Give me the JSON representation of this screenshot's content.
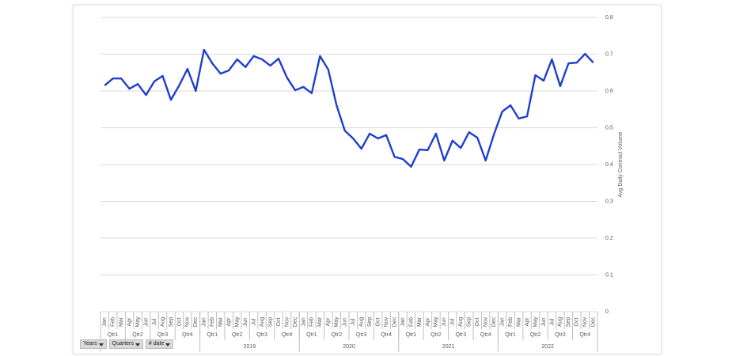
{
  "chart_data": {
    "type": "line",
    "y_label": "Avg Daily Contract Volume",
    "categories": [
      "Jan",
      "Feb",
      "Mar",
      "Apr",
      "May",
      "Jun",
      "Jul",
      "Aug",
      "Sep",
      "Oct",
      "Nov",
      "Dec",
      "Jan",
      "Feb",
      "Mar",
      "Apr",
      "May",
      "Jun",
      "Jul",
      "Aug",
      "Sep",
      "Oct",
      "Nov",
      "Dec",
      "Jan",
      "Feb",
      "Mar",
      "Apr",
      "May",
      "Jun",
      "Jul",
      "Aug",
      "Sep",
      "Oct",
      "Nov",
      "Dec",
      "Jan",
      "Feb",
      "Mar",
      "Apr",
      "May",
      "Jun",
      "Jul",
      "Aug",
      "Sep",
      "Oct",
      "Nov",
      "Dec",
      "Jan",
      "Feb",
      "Mar",
      "Apr",
      "May",
      "Jun",
      "Jul",
      "Aug",
      "Sep",
      "Oct",
      "Nov",
      "Dec"
    ],
    "quarter_labels": [
      "Qtr1",
      "Qtr2",
      "Qtr3",
      "Qtr4",
      "Qtr1",
      "Qtr2",
      "Qtr3",
      "Qtr4",
      "Qtr1",
      "Qtr2",
      "Qtr3",
      "Qtr4",
      "Qtr1",
      "Qtr2",
      "Qtr3",
      "Qtr4",
      "Qtr1",
      "Qtr2",
      "Qtr3",
      "Qtr4"
    ],
    "year_labels": [
      null,
      "2019",
      "2020",
      "2021",
      "2022"
    ],
    "values": [
      0.615,
      0.634,
      0.634,
      0.606,
      0.619,
      0.589,
      0.626,
      0.641,
      0.576,
      0.615,
      0.66,
      0.6,
      0.712,
      0.675,
      0.647,
      0.656,
      0.686,
      0.665,
      0.695,
      0.686,
      0.669,
      0.688,
      0.637,
      0.602,
      0.611,
      0.594,
      0.695,
      0.658,
      0.561,
      0.492,
      0.471,
      0.443,
      0.484,
      0.471,
      0.48,
      0.421,
      0.415,
      0.394,
      0.441,
      0.439,
      0.484,
      0.411,
      0.465,
      0.445,
      0.488,
      0.473,
      0.411,
      0.482,
      0.544,
      0.561,
      0.525,
      0.531,
      0.643,
      0.628,
      0.686,
      0.613,
      0.675,
      0.677,
      0.701,
      0.677
    ],
    "color": "#1f3fcc",
    "ylim": [
      0,
      0.8
    ],
    "yticks": [
      0,
      0.1,
      0.2,
      0.3,
      0.4,
      0.5,
      0.6,
      0.7,
      0.8
    ],
    "grid": true,
    "field_buttons": [
      "Years",
      "Quarters",
      "# date"
    ]
  }
}
